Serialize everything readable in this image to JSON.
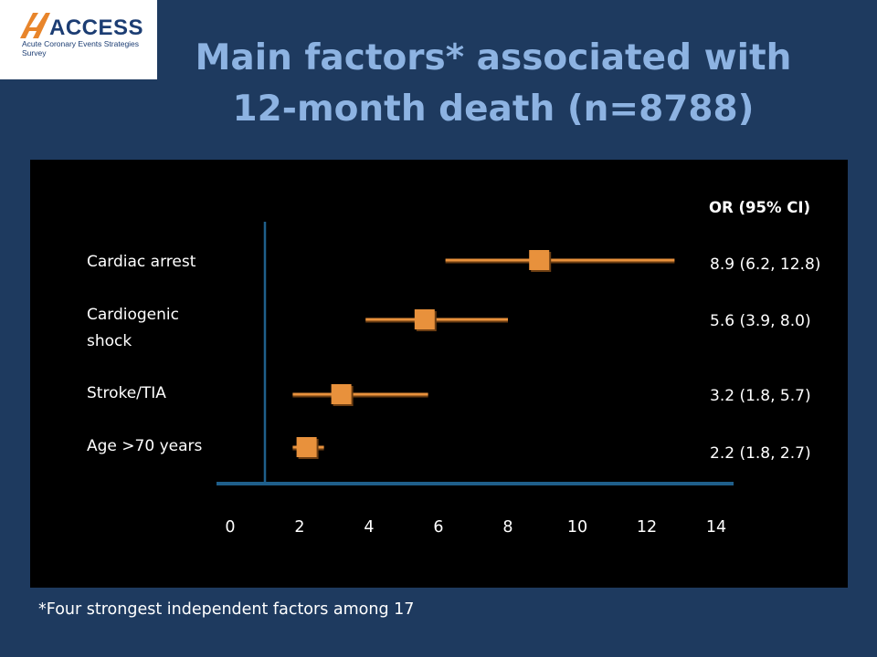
{
  "logo": {
    "name": "ACCESS",
    "tagline": "Acute Coronary Events Strategies Survey",
    "colors": {
      "mark": "#e8852b",
      "text": "#1c3d73"
    }
  },
  "slide": {
    "title_line1": "Main factors* associated with",
    "title_line2": "12-month death (n=8788)",
    "footnote": "*Four strongest independent factors among 17"
  },
  "colors": {
    "background": "#1e3a5f",
    "panel": "#000000",
    "title": "#8db3e2",
    "marker": "#e8913c",
    "axis": "#1f5f8b",
    "text": "#ffffff"
  },
  "chart_data": {
    "type": "forest",
    "or_header": "OR (95% CI)",
    "x_ticks": [
      "0",
      "2",
      "4",
      "6",
      "8",
      "10",
      "12",
      "14"
    ],
    "xlim": [
      0,
      14
    ],
    "reference_line": 1,
    "rows": [
      {
        "label_lines": [
          "Cardiac arrest"
        ],
        "or": 8.9,
        "lower": 6.2,
        "upper": 12.8,
        "ci_text": "8.9 (6.2, 12.8)"
      },
      {
        "label_lines": [
          "Cardiogenic",
          "shock"
        ],
        "or": 5.6,
        "lower": 3.9,
        "upper": 8.0,
        "ci_text": "5.6 (3.9, 8.0)"
      },
      {
        "label_lines": [
          "Stroke/TIA"
        ],
        "or": 3.2,
        "lower": 1.8,
        "upper": 5.7,
        "ci_text": "3.2 (1.8, 5.7)"
      },
      {
        "label_lines": [
          "Age >70 years"
        ],
        "or": 2.2,
        "lower": 1.8,
        "upper": 2.7,
        "ci_text": "2.2 (1.8, 2.7)"
      }
    ]
  }
}
